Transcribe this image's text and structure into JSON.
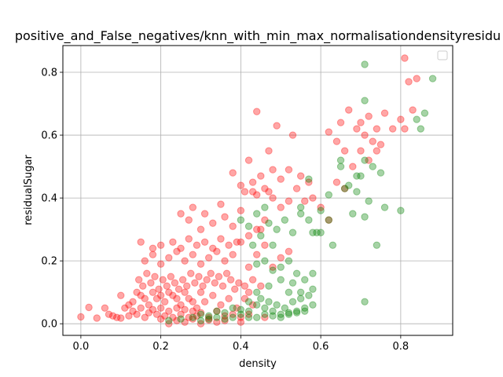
{
  "chart_data": {
    "type": "scatter",
    "title": "positive_and_False_negatives/knn_with_min_max_normalisationdensityresidu",
    "xlabel": "density",
    "ylabel": "residualSugar",
    "xlim": [
      -0.045,
      0.93
    ],
    "ylim": [
      -0.037,
      0.885
    ],
    "xticks": [
      0.0,
      0.2,
      0.4,
      0.6,
      0.8
    ],
    "xtick_labels": [
      "0.0",
      "0.2",
      "0.4",
      "0.6",
      "0.8"
    ],
    "yticks": [
      0.0,
      0.2,
      0.4,
      0.6,
      0.8
    ],
    "ytick_labels": [
      "0.0",
      "0.2",
      "0.4",
      "0.6",
      "0.8"
    ],
    "grid": true,
    "legend": {
      "placement": "upper right",
      "entries": []
    },
    "marker_alpha": 0.35,
    "series": [
      {
        "color": "#ff0000",
        "points": [
          [
            0.0,
            0.022
          ],
          [
            0.02,
            0.052
          ],
          [
            0.04,
            0.018
          ],
          [
            0.06,
            0.05
          ],
          [
            0.07,
            0.03
          ],
          [
            0.08,
            0.025
          ],
          [
            0.09,
            0.02
          ],
          [
            0.1,
            0.018
          ],
          [
            0.11,
            0.05
          ],
          [
            0.12,
            0.025
          ],
          [
            0.13,
            0.04
          ],
          [
            0.14,
            0.03
          ],
          [
            0.15,
            0.05
          ],
          [
            0.16,
            0.02
          ],
          [
            0.17,
            0.035
          ],
          [
            0.18,
            0.045
          ],
          [
            0.19,
            0.03
          ],
          [
            0.2,
            0.05
          ],
          [
            0.21,
            0.025
          ],
          [
            0.22,
            0.04
          ],
          [
            0.23,
            0.02
          ],
          [
            0.24,
            0.05
          ],
          [
            0.25,
            0.03
          ],
          [
            0.26,
            0.045
          ],
          [
            0.27,
            0.02
          ],
          [
            0.28,
            0.04
          ],
          [
            0.29,
            0.025
          ],
          [
            0.3,
            0.035
          ],
          [
            0.32,
            0.02
          ],
          [
            0.34,
            0.04
          ],
          [
            0.36,
            0.025
          ],
          [
            0.38,
            0.03
          ],
          [
            0.4,
            0.02
          ],
          [
            0.42,
            0.03
          ],
          [
            0.46,
            0.02
          ],
          [
            0.13,
            0.07
          ],
          [
            0.15,
            0.09
          ],
          [
            0.17,
            0.06
          ],
          [
            0.19,
            0.08
          ],
          [
            0.21,
            0.07
          ],
          [
            0.23,
            0.09
          ],
          [
            0.25,
            0.06
          ],
          [
            0.27,
            0.08
          ],
          [
            0.29,
            0.05
          ],
          [
            0.31,
            0.07
          ],
          [
            0.33,
            0.09
          ],
          [
            0.35,
            0.06
          ],
          [
            0.37,
            0.08
          ],
          [
            0.39,
            0.05
          ],
          [
            0.1,
            0.09
          ],
          [
            0.12,
            0.06
          ],
          [
            0.14,
            0.1
          ],
          [
            0.16,
            0.08
          ],
          [
            0.18,
            0.1
          ],
          [
            0.2,
            0.09
          ],
          [
            0.22,
            0.1
          ],
          [
            0.24,
            0.08
          ],
          [
            0.26,
            0.1
          ],
          [
            0.28,
            0.07
          ],
          [
            0.3,
            0.1
          ],
          [
            0.145,
            0.14
          ],
          [
            0.155,
            0.12
          ],
          [
            0.165,
            0.16
          ],
          [
            0.175,
            0.13
          ],
          [
            0.185,
            0.15
          ],
          [
            0.195,
            0.11
          ],
          [
            0.205,
            0.14
          ],
          [
            0.215,
            0.12
          ],
          [
            0.225,
            0.15
          ],
          [
            0.235,
            0.13
          ],
          [
            0.245,
            0.11
          ],
          [
            0.255,
            0.14
          ],
          [
            0.265,
            0.12
          ],
          [
            0.275,
            0.16
          ],
          [
            0.285,
            0.13
          ],
          [
            0.295,
            0.15
          ],
          [
            0.305,
            0.12
          ],
          [
            0.315,
            0.14
          ],
          [
            0.325,
            0.16
          ],
          [
            0.335,
            0.13
          ],
          [
            0.345,
            0.15
          ],
          [
            0.355,
            0.12
          ],
          [
            0.365,
            0.16
          ],
          [
            0.375,
            0.14
          ],
          [
            0.385,
            0.11
          ],
          [
            0.395,
            0.13
          ],
          [
            0.16,
            0.2
          ],
          [
            0.18,
            0.22
          ],
          [
            0.2,
            0.19
          ],
          [
            0.22,
            0.21
          ],
          [
            0.24,
            0.23
          ],
          [
            0.26,
            0.2
          ],
          [
            0.28,
            0.22
          ],
          [
            0.3,
            0.19
          ],
          [
            0.32,
            0.21
          ],
          [
            0.34,
            0.23
          ],
          [
            0.36,
            0.2
          ],
          [
            0.38,
            0.22
          ],
          [
            0.15,
            0.26
          ],
          [
            0.18,
            0.24
          ],
          [
            0.2,
            0.25
          ],
          [
            0.23,
            0.26
          ],
          [
            0.25,
            0.24
          ],
          [
            0.27,
            0.27
          ],
          [
            0.29,
            0.25
          ],
          [
            0.31,
            0.26
          ],
          [
            0.33,
            0.24
          ],
          [
            0.35,
            0.27
          ],
          [
            0.37,
            0.25
          ],
          [
            0.39,
            0.26
          ],
          [
            0.25,
            0.35
          ],
          [
            0.27,
            0.33
          ],
          [
            0.28,
            0.37
          ],
          [
            0.3,
            0.3
          ],
          [
            0.31,
            0.35
          ],
          [
            0.33,
            0.32
          ],
          [
            0.35,
            0.38
          ],
          [
            0.36,
            0.34
          ],
          [
            0.38,
            0.31
          ],
          [
            0.4,
            0.36
          ],
          [
            0.38,
            0.48
          ],
          [
            0.4,
            0.44
          ],
          [
            0.41,
            0.42
          ],
          [
            0.42,
            0.52
          ],
          [
            0.43,
            0.45
          ],
          [
            0.45,
            0.47
          ],
          [
            0.47,
            0.55
          ],
          [
            0.48,
            0.49
          ],
          [
            0.5,
            0.46
          ],
          [
            0.52,
            0.49
          ],
          [
            0.54,
            0.43
          ],
          [
            0.55,
            0.47
          ],
          [
            0.57,
            0.45
          ],
          [
            0.53,
            0.6
          ],
          [
            0.49,
            0.63
          ],
          [
            0.44,
            0.41
          ],
          [
            0.46,
            0.43
          ],
          [
            0.48,
            0.4
          ],
          [
            0.5,
            0.37
          ],
          [
            0.52,
            0.39
          ],
          [
            0.44,
            0.22
          ],
          [
            0.46,
            0.25
          ],
          [
            0.48,
            0.18
          ],
          [
            0.5,
            0.21
          ],
          [
            0.52,
            0.23
          ],
          [
            0.44,
            0.3
          ],
          [
            0.46,
            0.33
          ],
          [
            0.42,
            0.28
          ],
          [
            0.4,
            0.26
          ],
          [
            0.42,
            0.18
          ],
          [
            0.44,
            0.675
          ],
          [
            0.43,
            0.42
          ],
          [
            0.47,
            0.42
          ],
          [
            0.45,
            0.3
          ],
          [
            0.41,
            0.12
          ],
          [
            0.42,
            0.1
          ],
          [
            0.43,
            0.14
          ],
          [
            0.41,
            0.08
          ],
          [
            0.43,
            0.06
          ],
          [
            0.45,
            0.12
          ],
          [
            0.62,
            0.61
          ],
          [
            0.64,
            0.58
          ],
          [
            0.65,
            0.64
          ],
          [
            0.67,
            0.68
          ],
          [
            0.69,
            0.62
          ],
          [
            0.7,
            0.64
          ],
          [
            0.71,
            0.6
          ],
          [
            0.72,
            0.66
          ],
          [
            0.73,
            0.58
          ],
          [
            0.74,
            0.62
          ],
          [
            0.75,
            0.57
          ],
          [
            0.76,
            0.67
          ],
          [
            0.78,
            0.62
          ],
          [
            0.8,
            0.65
          ],
          [
            0.81,
            0.62
          ],
          [
            0.82,
            0.77
          ],
          [
            0.83,
            0.68
          ],
          [
            0.84,
            0.78
          ],
          [
            0.81,
            0.845
          ],
          [
            0.7,
            0.55
          ],
          [
            0.72,
            0.52
          ],
          [
            0.74,
            0.55
          ],
          [
            0.68,
            0.5
          ],
          [
            0.66,
            0.55
          ],
          [
            0.64,
            0.45
          ],
          [
            0.66,
            0.43
          ],
          [
            0.6,
            0.37
          ],
          [
            0.58,
            0.4
          ],
          [
            0.62,
            0.33
          ],
          [
            0.56,
            0.39
          ],
          [
            0.22,
            0.0
          ],
          [
            0.26,
            0.005
          ],
          [
            0.3,
            0.0
          ],
          [
            0.34,
            0.005
          ],
          [
            0.36,
            0.01
          ],
          [
            0.4,
            0.005
          ],
          [
            0.2,
            0.015
          ],
          [
            0.24,
            0.01
          ],
          [
            0.28,
            0.015
          ],
          [
            0.32,
            0.012
          ]
        ]
      },
      {
        "color": "#008000",
        "points": [
          [
            0.22,
            0.01
          ],
          [
            0.25,
            0.015
          ],
          [
            0.28,
            0.02
          ],
          [
            0.3,
            0.03
          ],
          [
            0.32,
            0.025
          ],
          [
            0.34,
            0.04
          ],
          [
            0.36,
            0.035
          ],
          [
            0.38,
            0.05
          ],
          [
            0.4,
            0.045
          ],
          [
            0.42,
            0.04
          ],
          [
            0.44,
            0.06
          ],
          [
            0.46,
            0.05
          ],
          [
            0.48,
            0.04
          ],
          [
            0.5,
            0.03
          ],
          [
            0.52,
            0.035
          ],
          [
            0.54,
            0.04
          ],
          [
            0.56,
            0.05
          ],
          [
            0.58,
            0.06
          ],
          [
            0.44,
            0.02
          ],
          [
            0.46,
            0.03
          ],
          [
            0.48,
            0.025
          ],
          [
            0.5,
            0.02
          ],
          [
            0.52,
            0.03
          ],
          [
            0.54,
            0.035
          ],
          [
            0.56,
            0.04
          ],
          [
            0.4,
            0.03
          ],
          [
            0.42,
            0.02
          ],
          [
            0.38,
            0.02
          ],
          [
            0.36,
            0.015
          ],
          [
            0.34,
            0.02
          ],
          [
            0.3,
            0.01
          ],
          [
            0.32,
            0.015
          ],
          [
            0.42,
            0.07
          ],
          [
            0.45,
            0.08
          ],
          [
            0.47,
            0.07
          ],
          [
            0.49,
            0.06
          ],
          [
            0.51,
            0.05
          ],
          [
            0.53,
            0.07
          ],
          [
            0.55,
            0.08
          ],
          [
            0.57,
            0.09
          ],
          [
            0.58,
            0.11
          ],
          [
            0.52,
            0.1
          ],
          [
            0.44,
            0.19
          ],
          [
            0.46,
            0.2
          ],
          [
            0.48,
            0.17
          ],
          [
            0.5,
            0.18
          ],
          [
            0.52,
            0.2
          ],
          [
            0.54,
            0.16
          ],
          [
            0.56,
            0.14
          ],
          [
            0.58,
            0.16
          ],
          [
            0.43,
            0.25
          ],
          [
            0.45,
            0.28
          ],
          [
            0.47,
            0.32
          ],
          [
            0.49,
            0.3
          ],
          [
            0.51,
            0.33
          ],
          [
            0.53,
            0.29
          ],
          [
            0.55,
            0.35
          ],
          [
            0.57,
            0.33
          ],
          [
            0.59,
            0.29
          ],
          [
            0.44,
            0.35
          ],
          [
            0.4,
            0.33
          ],
          [
            0.42,
            0.31
          ],
          [
            0.46,
            0.37
          ],
          [
            0.48,
            0.25
          ],
          [
            0.55,
            0.37
          ],
          [
            0.57,
            0.46
          ],
          [
            0.6,
            0.36
          ],
          [
            0.62,
            0.41
          ],
          [
            0.63,
            0.25
          ],
          [
            0.65,
            0.52
          ],
          [
            0.66,
            0.43
          ],
          [
            0.67,
            0.44
          ],
          [
            0.68,
            0.35
          ],
          [
            0.69,
            0.42
          ],
          [
            0.7,
            0.47
          ],
          [
            0.71,
            0.34
          ],
          [
            0.71,
            0.52
          ],
          [
            0.72,
            0.39
          ],
          [
            0.73,
            0.5
          ],
          [
            0.74,
            0.25
          ],
          [
            0.75,
            0.48
          ],
          [
            0.76,
            0.37
          ],
          [
            0.8,
            0.36
          ],
          [
            0.71,
            0.71
          ],
          [
            0.71,
            0.825
          ],
          [
            0.84,
            0.65
          ],
          [
            0.85,
            0.62
          ],
          [
            0.86,
            0.67
          ],
          [
            0.88,
            0.78
          ],
          [
            0.71,
            0.07
          ],
          [
            0.65,
            0.5
          ],
          [
            0.69,
            0.47
          ],
          [
            0.62,
            0.33
          ],
          [
            0.44,
            0.1
          ],
          [
            0.47,
            0.12
          ],
          [
            0.5,
            0.14
          ],
          [
            0.53,
            0.13
          ],
          [
            0.55,
            0.1
          ],
          [
            0.6,
            0.29
          ],
          [
            0.58,
            0.29
          ]
        ]
      }
    ]
  }
}
